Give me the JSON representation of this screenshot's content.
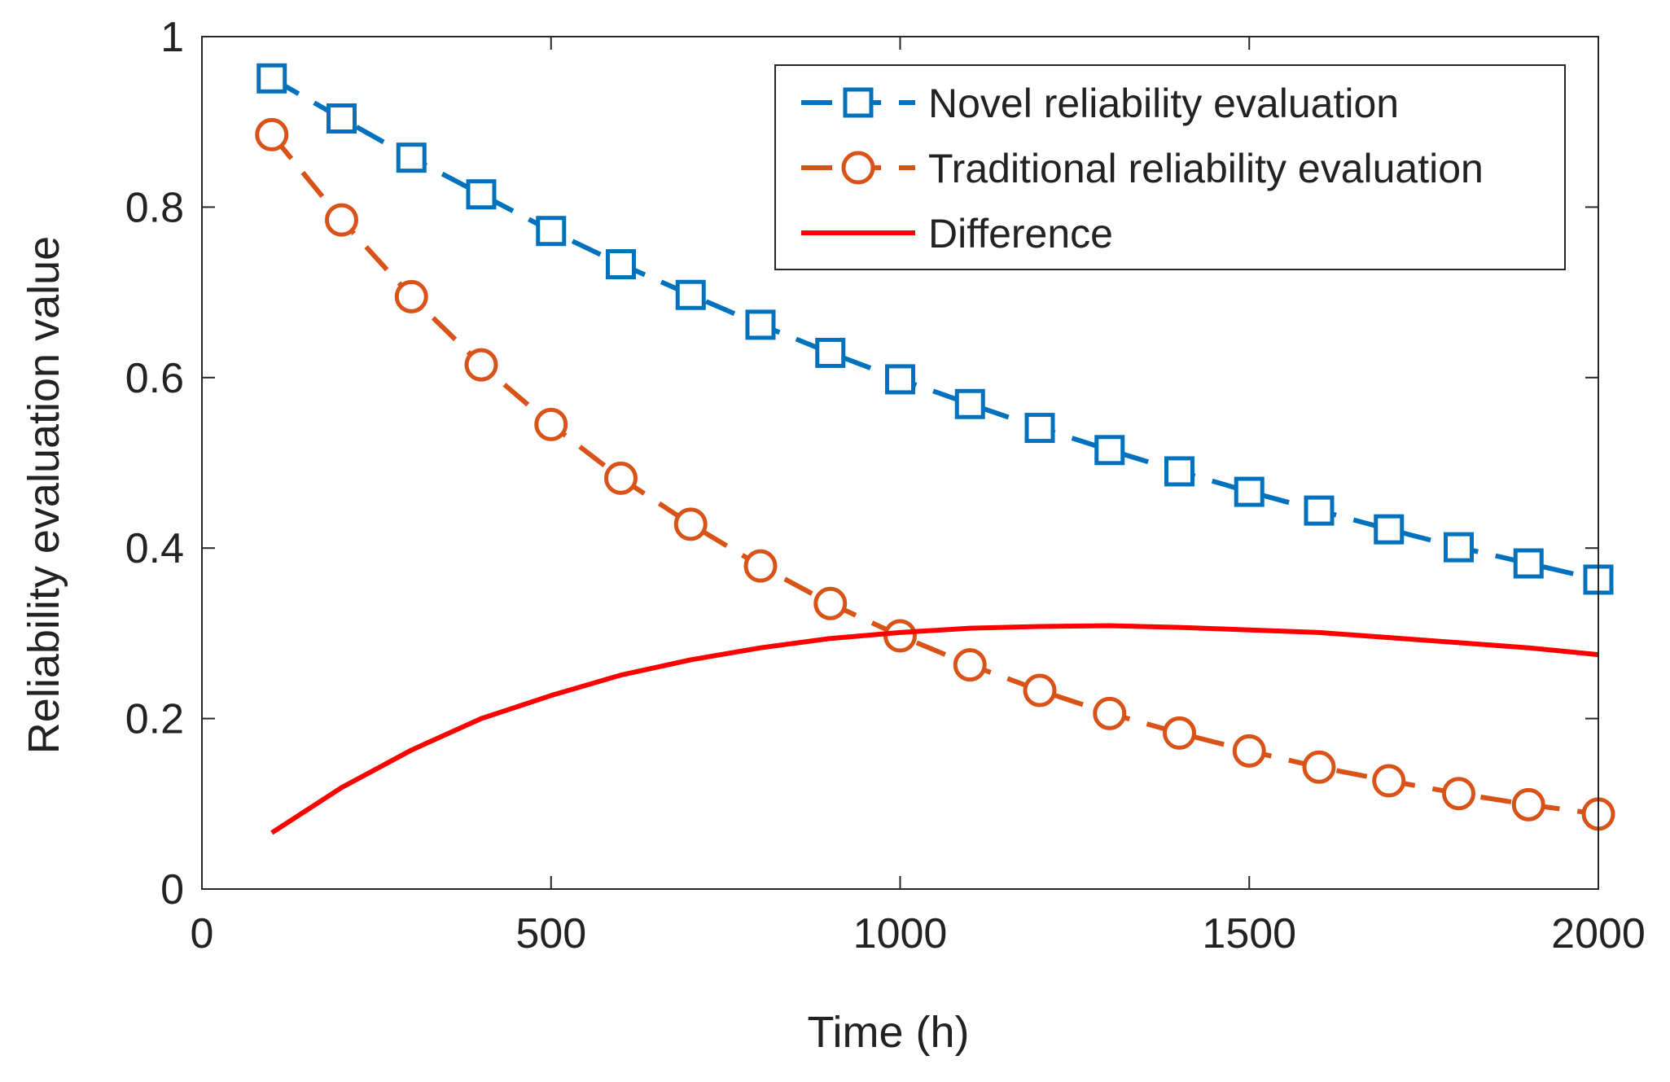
{
  "chart_data": {
    "type": "line",
    "title": "",
    "xlabel": "Time (h)",
    "ylabel": "Reliability evaluation value",
    "xlim": [
      0,
      2000
    ],
    "ylim": [
      0,
      1
    ],
    "x_ticks": [
      0,
      500,
      1000,
      1500,
      2000
    ],
    "y_ticks": [
      0,
      0.2,
      0.4,
      0.6,
      0.8,
      1
    ],
    "x_tick_labels": [
      "0",
      "500",
      "1000",
      "1500",
      "2000"
    ],
    "y_tick_labels": [
      "0",
      "0.2",
      "0.4",
      "0.6",
      "0.8",
      "1"
    ],
    "grid": false,
    "legend_position": "top-right",
    "x": [
      100,
      200,
      300,
      400,
      500,
      600,
      700,
      800,
      900,
      1000,
      1100,
      1200,
      1300,
      1400,
      1500,
      1600,
      1700,
      1800,
      1900,
      2000
    ],
    "series": [
      {
        "name": "Novel reliability evaluation",
        "color": "#0072BD",
        "line_style": "dashed",
        "marker": "square",
        "values": [
          0.951,
          0.904,
          0.858,
          0.815,
          0.772,
          0.733,
          0.697,
          0.662,
          0.629,
          0.598,
          0.569,
          0.541,
          0.515,
          0.49,
          0.466,
          0.444,
          0.422,
          0.401,
          0.382,
          0.363
        ]
      },
      {
        "name": "Traditional reliability evaluation",
        "color": "#D95319",
        "line_style": "dashed",
        "marker": "circle",
        "values": [
          0.885,
          0.785,
          0.695,
          0.615,
          0.545,
          0.482,
          0.428,
          0.379,
          0.335,
          0.297,
          0.263,
          0.233,
          0.206,
          0.183,
          0.162,
          0.143,
          0.127,
          0.112,
          0.099,
          0.088
        ]
      },
      {
        "name": "Difference",
        "color": "#FF0000",
        "line_style": "solid",
        "marker": "none",
        "values": [
          0.066,
          0.119,
          0.163,
          0.2,
          0.227,
          0.251,
          0.269,
          0.283,
          0.294,
          0.301,
          0.306,
          0.308,
          0.309,
          0.307,
          0.304,
          0.301,
          0.295,
          0.289,
          0.283,
          0.275
        ]
      }
    ]
  }
}
